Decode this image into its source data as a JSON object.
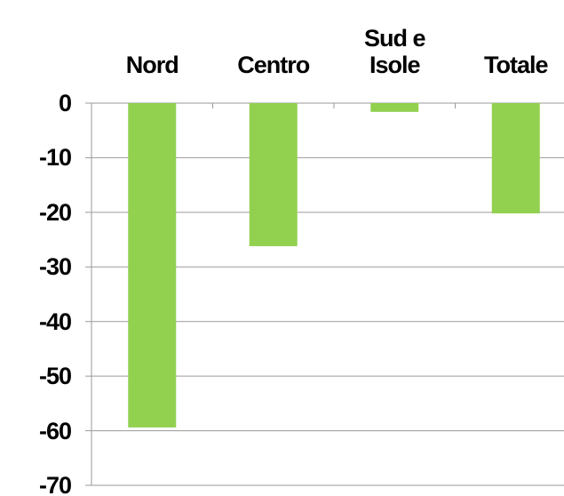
{
  "chart_data": {
    "type": "bar",
    "categories": [
      "Nord",
      "Centro",
      "Sud e Isole",
      "Totale"
    ],
    "values": [
      -59.4,
      -26.2,
      -1.6,
      -20.2
    ],
    "color": "#92d050",
    "ylim": [
      -70,
      0
    ],
    "yticks": [
      0,
      -10,
      -20,
      -30,
      -40,
      -50,
      -60,
      -70
    ],
    "grid": true
  }
}
